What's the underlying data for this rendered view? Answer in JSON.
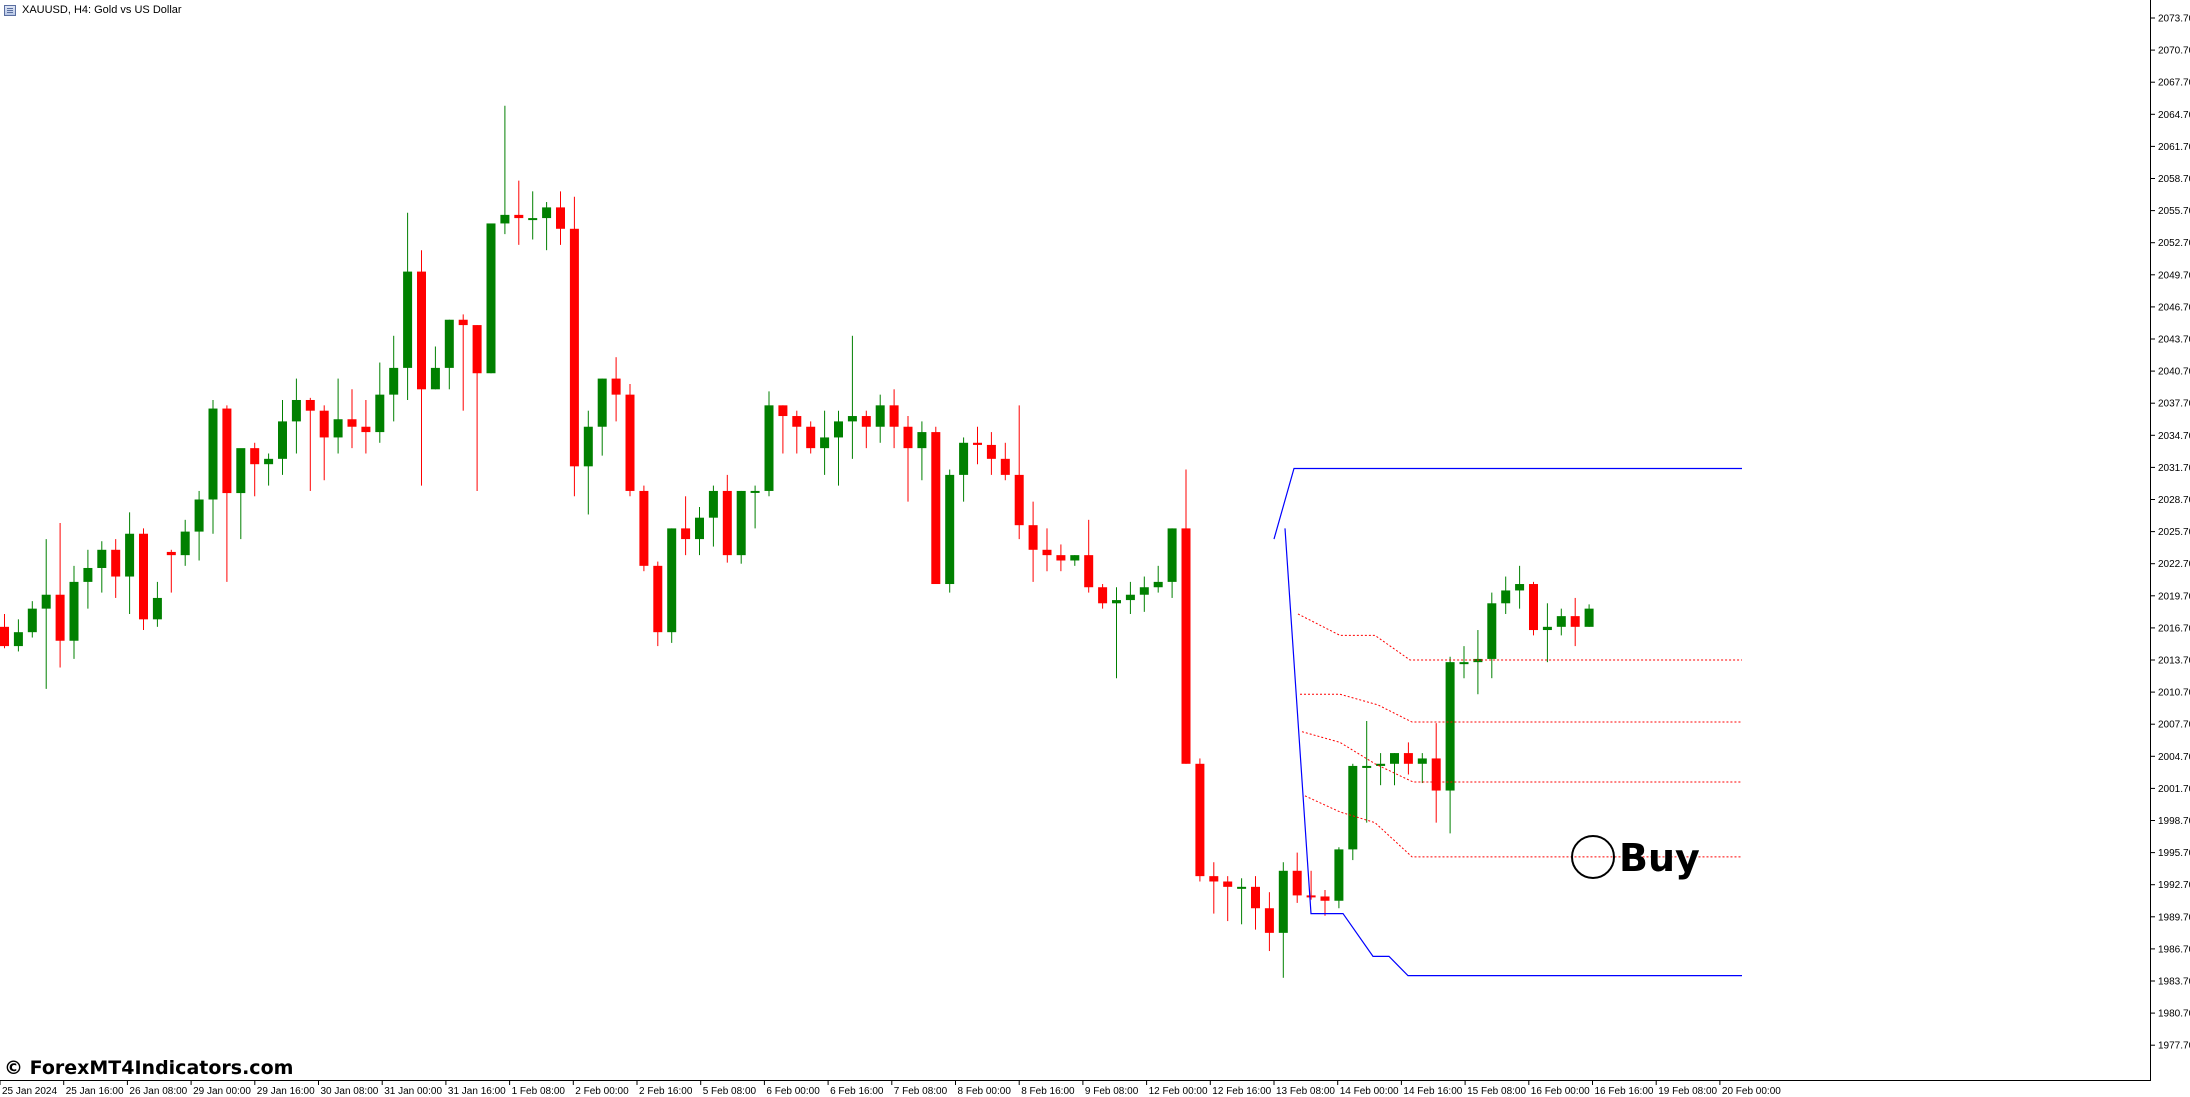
{
  "window": {
    "symbol_title": "XAUUSD, H4:  Gold vs US Dollar"
  },
  "watermark": "© ForexMT4Indicators.com",
  "signal": {
    "label": "Buy",
    "price": 1995.7
  },
  "colors": {
    "bull_candle": "#008000",
    "bear_candle": "#ff0000",
    "channel_line": "#0000ff",
    "level_line": "#ff0000",
    "axis": "#000000",
    "background": "#ffffff"
  },
  "chart_data": {
    "type": "candlestick",
    "symbol": "XAUUSD",
    "timeframe": "H4",
    "price_ticks": [
      "2073.70",
      "2070.70",
      "2067.70",
      "2064.70",
      "2061.70",
      "2058.70",
      "2055.70",
      "2052.70",
      "2049.70",
      "2046.70",
      "2043.70",
      "2040.70",
      "2037.70",
      "2034.70",
      "2031.70",
      "2028.70",
      "2025.70",
      "2022.70",
      "2019.70",
      "2016.70",
      "2013.70",
      "2010.70",
      "2007.70",
      "2004.70",
      "2001.70",
      "1998.70",
      "1995.70",
      "1992.70",
      "1989.70",
      "1986.70",
      "1983.70",
      "1980.70",
      "1977.70"
    ],
    "time_ticks": [
      "25 Jan 2024",
      "25 Jan 16:00",
      "26 Jan 08:00",
      "29 Jan 00:00",
      "29 Jan 16:00",
      "30 Jan 08:00",
      "31 Jan 00:00",
      "31 Jan 16:00",
      "1 Feb 08:00",
      "2 Feb 00:00",
      "2 Feb 16:00",
      "5 Feb 08:00",
      "6 Feb 00:00",
      "6 Feb 16:00",
      "7 Feb 08:00",
      "8 Feb 00:00",
      "8 Feb 16:00",
      "9 Feb 08:00",
      "12 Feb 00:00",
      "12 Feb 16:00",
      "13 Feb 08:00",
      "14 Feb 00:00",
      "14 Feb 16:00",
      "15 Feb 08:00",
      "16 Feb 00:00",
      "16 Feb 16:00",
      "19 Feb 08:00",
      "20 Feb 00:00"
    ],
    "ylim": [
      1976.0,
      2075.5
    ],
    "candles": [
      [
        2016.8,
        2018.0,
        2014.8,
        2015.0
      ],
      [
        2015.0,
        2017.5,
        2014.5,
        2016.3
      ],
      [
        2016.3,
        2019.2,
        2015.8,
        2018.5
      ],
      [
        2018.5,
        2025.0,
        2011.0,
        2019.8
      ],
      [
        2019.8,
        2026.5,
        2013.0,
        2015.5
      ],
      [
        2015.5,
        2022.5,
        2013.8,
        2021.0
      ],
      [
        2021.0,
        2024.0,
        2018.5,
        2022.3
      ],
      [
        2022.3,
        2024.8,
        2020.0,
        2024.0
      ],
      [
        2024.0,
        2025.0,
        2019.5,
        2021.5
      ],
      [
        2021.5,
        2027.5,
        2018.0,
        2025.5
      ],
      [
        2025.5,
        2026.0,
        2016.5,
        2017.5
      ],
      [
        2017.5,
        2021.0,
        2016.8,
        2019.5
      ],
      [
        2023.8,
        2024.0,
        2020.0,
        2023.5
      ],
      [
        2023.5,
        2026.8,
        2022.5,
        2025.7
      ],
      [
        2025.7,
        2029.5,
        2023.0,
        2028.7
      ],
      [
        2028.7,
        2038.0,
        2025.5,
        2037.2
      ],
      [
        2037.2,
        2037.5,
        2021.0,
        2029.3
      ],
      [
        2029.3,
        2033.0,
        2025.0,
        2033.5
      ],
      [
        2033.5,
        2034.0,
        2029.0,
        2032.0
      ],
      [
        2032.0,
        2033.0,
        2030.0,
        2032.5
      ],
      [
        2032.5,
        2038.0,
        2031.0,
        2036.0
      ],
      [
        2036.0,
        2040.0,
        2033.0,
        2038.0
      ],
      [
        2038.0,
        2038.2,
        2029.5,
        2037.0
      ],
      [
        2037.0,
        2037.5,
        2030.5,
        2034.5
      ],
      [
        2034.5,
        2040.0,
        2033.0,
        2036.2
      ],
      [
        2036.2,
        2039.0,
        2033.5,
        2035.5
      ],
      [
        2035.5,
        2038.0,
        2033.0,
        2035.0
      ],
      [
        2035.0,
        2041.5,
        2034.0,
        2038.5
      ],
      [
        2038.5,
        2044.0,
        2036.0,
        2041.0
      ],
      [
        2041.0,
        2055.5,
        2038.0,
        2050.0
      ],
      [
        2050.0,
        2052.0,
        2030.0,
        2039.0
      ],
      [
        2039.0,
        2043.0,
        2039.0,
        2041.0
      ],
      [
        2041.0,
        2045.5,
        2039.0,
        2045.5
      ],
      [
        2045.5,
        2046.0,
        2037.0,
        2045.0
      ],
      [
        2045.0,
        2045.0,
        2029.5,
        2040.5
      ],
      [
        2040.5,
        2054.0,
        2040.5,
        2054.5
      ],
      [
        2054.5,
        2065.5,
        2053.5,
        2055.3
      ],
      [
        2055.3,
        2058.5,
        2052.5,
        2055.0
      ],
      [
        2055.0,
        2057.5,
        2053.0,
        2055.0
      ],
      [
        2055.0,
        2056.5,
        2052.0,
        2056.0
      ],
      [
        2056.0,
        2057.5,
        2052.5,
        2054.0
      ],
      [
        2054.0,
        2057.0,
        2029.0,
        2031.8
      ],
      [
        2031.8,
        2037.0,
        2027.3,
        2035.5
      ],
      [
        2035.5,
        2040.0,
        2032.8,
        2040.0
      ],
      [
        2040.0,
        2042.0,
        2036.0,
        2038.5
      ],
      [
        2038.5,
        2039.5,
        2029.0,
        2029.5
      ],
      [
        2029.5,
        2030.0,
        2022.0,
        2022.5
      ],
      [
        2022.5,
        2022.9,
        2015.0,
        2016.3
      ],
      [
        2016.3,
        2026.0,
        2015.3,
        2026.0
      ],
      [
        2026.0,
        2029.0,
        2023.5,
        2025.0
      ],
      [
        2025.0,
        2028.0,
        2023.5,
        2027.0
      ],
      [
        2027.0,
        2030.0,
        2024.3,
        2029.5
      ],
      [
        2029.5,
        2031.0,
        2022.8,
        2023.5
      ],
      [
        2023.5,
        2029.5,
        2022.7,
        2029.5
      ],
      [
        2029.5,
        2030.0,
        2026.0,
        2029.5
      ],
      [
        2029.5,
        2038.8,
        2029.0,
        2037.5
      ],
      [
        2037.5,
        2037.5,
        2033.0,
        2036.5
      ],
      [
        2036.5,
        2037.0,
        2033.0,
        2035.5
      ],
      [
        2035.5,
        2036.0,
        2033.0,
        2033.5
      ],
      [
        2033.5,
        2037.0,
        2031.0,
        2034.5
      ],
      [
        2034.5,
        2037.0,
        2030.0,
        2036.0
      ],
      [
        2036.0,
        2044.0,
        2032.5,
        2036.5
      ],
      [
        2036.5,
        2037.0,
        2033.5,
        2035.5
      ],
      [
        2035.5,
        2038.5,
        2034.0,
        2037.5
      ],
      [
        2037.5,
        2039.0,
        2033.5,
        2035.5
      ],
      [
        2035.5,
        2036.5,
        2028.5,
        2033.5
      ],
      [
        2033.5,
        2036.0,
        2030.5,
        2035.0
      ],
      [
        2035.0,
        2035.5,
        2021.0,
        2020.8
      ],
      [
        2020.8,
        2031.5,
        2020.0,
        2031.0
      ],
      [
        2031.0,
        2034.5,
        2028.5,
        2034.0
      ],
      [
        2034.0,
        2035.5,
        2032.0,
        2033.8
      ],
      [
        2033.8,
        2035.0,
        2031.0,
        2032.5
      ],
      [
        2032.5,
        2034.0,
        2030.5,
        2031.0
      ],
      [
        2031.0,
        2037.5,
        2025.0,
        2026.3
      ],
      [
        2026.3,
        2028.5,
        2021.0,
        2024.0
      ],
      [
        2024.0,
        2026.0,
        2022.0,
        2023.5
      ],
      [
        2023.5,
        2024.5,
        2022.0,
        2023.0
      ],
      [
        2023.0,
        2023.5,
        2022.5,
        2023.5
      ],
      [
        2023.5,
        2026.8,
        2020.0,
        2020.5
      ],
      [
        2020.5,
        2020.8,
        2018.5,
        2019.0
      ],
      [
        2019.0,
        2020.5,
        2012.0,
        2019.3
      ],
      [
        2019.3,
        2021.0,
        2018.0,
        2019.8
      ],
      [
        2019.8,
        2021.5,
        2018.2,
        2020.5
      ],
      [
        2020.5,
        2022.5,
        2020.0,
        2021.0
      ],
      [
        2021.0,
        2026.0,
        2019.5,
        2026.0
      ],
      [
        2026.0,
        2031.5,
        2004.0,
        2004.0
      ],
      [
        2004.0,
        2004.5,
        1993.0,
        1993.5
      ],
      [
        1993.5,
        1994.8,
        1990.0,
        1993.0
      ],
      [
        1993.0,
        1993.5,
        1989.3,
        1992.5
      ],
      [
        1992.5,
        1993.3,
        1989.0,
        1992.5
      ],
      [
        1992.5,
        1993.5,
        1988.5,
        1990.5
      ],
      [
        1990.5,
        1992.0,
        1986.5,
        1988.2
      ],
      [
        1988.2,
        1994.8,
        1984.0,
        1994.0
      ],
      [
        1994.0,
        1995.7,
        1991.0,
        1991.7
      ],
      [
        1991.7,
        1994.0,
        1991.3,
        1991.6
      ],
      [
        1991.6,
        1992.2,
        1989.8,
        1991.2
      ],
      [
        1991.2,
        1996.2,
        1990.5,
        1996.0
      ],
      [
        1996.0,
        2004.0,
        1995.0,
        2003.8
      ],
      [
        2003.8,
        2008.0,
        1998.5,
        2003.8
      ],
      [
        2003.8,
        2005.0,
        2002.0,
        2004.0
      ],
      [
        2004.0,
        2005.0,
        2002.0,
        2005.0
      ],
      [
        2005.0,
        2006.0,
        2003.0,
        2004.0
      ],
      [
        2004.0,
        2005.0,
        2002.2,
        2004.5
      ],
      [
        2004.5,
        2007.8,
        1998.5,
        2001.5
      ],
      [
        2001.5,
        2014.0,
        1997.5,
        2013.5
      ],
      [
        2013.5,
        2015.0,
        2012.0,
        2013.5
      ],
      [
        2013.5,
        2016.5,
        2010.5,
        2013.8
      ],
      [
        2013.8,
        2020.0,
        2012.0,
        2019.0
      ],
      [
        2019.0,
        2021.5,
        2018.0,
        2020.2
      ],
      [
        2020.2,
        2022.5,
        2018.5,
        2020.8
      ],
      [
        2020.8,
        2021.0,
        2016.0,
        2016.5
      ],
      [
        2016.5,
        2019.0,
        2013.5,
        2016.8
      ],
      [
        2016.8,
        2018.5,
        2016.0,
        2017.8
      ],
      [
        2017.8,
        2019.5,
        2015.0,
        2016.8
      ],
      [
        2016.8,
        2018.9,
        2016.8,
        2018.5
      ]
    ],
    "fibo_levels": [
      2031.8,
      2013.7,
      2007.9,
      2002.3,
      1995.3,
      1984.4
    ],
    "fibo_price_points": {
      "top": [
        2025.0,
        2031.6,
        2031.6
      ],
      "bottom_path": [
        2026.0,
        1990.0,
        1990.0,
        1986.0,
        1986.0,
        1984.2,
        1984.2
      ]
    }
  }
}
